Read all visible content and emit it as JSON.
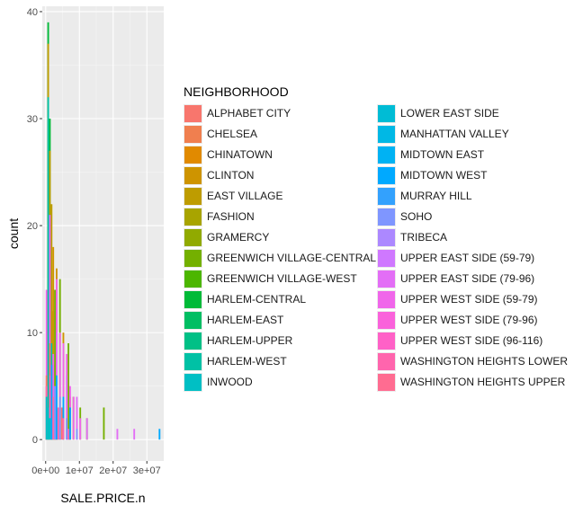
{
  "chart_data": {
    "type": "histogram",
    "xlabel": "SALE.PRICE.n",
    "ylabel": "count",
    "x_tick_labels": [
      "0e+00",
      "1e+07",
      "2e+07",
      "3e+07"
    ],
    "x_ticks": [
      0,
      10000000,
      20000000,
      30000000
    ],
    "xlim": [
      -1000000,
      35000000
    ],
    "y_ticks": [
      0,
      10,
      20,
      30,
      40
    ],
    "ylim": [
      -2,
      40.5
    ],
    "grid": true,
    "legend_title": "NEIGHBORHOOD",
    "legend_position": "right",
    "categories": [
      "ALPHABET CITY",
      "CHELSEA",
      "CHINATOWN",
      "CLINTON",
      "EAST VILLAGE",
      "FASHION",
      "GRAMERCY",
      "GREENWICH VILLAGE-CENTRAL",
      "GREENWICH VILLAGE-WEST",
      "HARLEM-CENTRAL",
      "HARLEM-EAST",
      "HARLEM-UPPER",
      "HARLEM-WEST",
      "INWOOD",
      "LOWER EAST SIDE",
      "MANHATTAN VALLEY",
      "MIDTOWN EAST",
      "MIDTOWN WEST",
      "MURRAY HILL",
      "SOHO",
      "TRIBECA",
      "UPPER EAST SIDE (59-79)",
      "UPPER EAST SIDE (79-96)",
      "UPPER WEST SIDE (59-79)",
      "UPPER WEST SIDE (79-96)",
      "UPPER WEST SIDE (96-116)",
      "WASHINGTON HEIGHTS LOWER",
      "WASHINGTON HEIGHTS UPPER"
    ],
    "colors": [
      "#F8766D",
      "#F07F4F",
      "#E18A00",
      "#CE9400",
      "#BE9C00",
      "#A8A400",
      "#91AA00",
      "#74B000",
      "#4CB600",
      "#00BA38",
      "#00BE63",
      "#00C086",
      "#00C1A5",
      "#00BFC4",
      "#00BCD5",
      "#00B8E5",
      "#00B2F3",
      "#00A9FF",
      "#33A1FD",
      "#7F96FF",
      "#AC88FF",
      "#CF78FF",
      "#E36EF6",
      "#F066EA",
      "#FA62DB",
      "#FF61C7",
      "#FF65AD",
      "#FF6C91"
    ],
    "series": [
      {
        "name": "HARLEM-CENTRAL",
        "bin_starts": [
          0,
          500000,
          1000000,
          1500000,
          2000000,
          2500000,
          3000000
        ],
        "counts": [
          5,
          39,
          30,
          12,
          6,
          3,
          1
        ]
      },
      {
        "name": "EAST VILLAGE",
        "bin_starts": [
          0,
          500000,
          1000000,
          1500000,
          2000000,
          2500000,
          3000000,
          3500000
        ],
        "counts": [
          3,
          37,
          27,
          22,
          12,
          7,
          5,
          2
        ]
      },
      {
        "name": "HARLEM-WEST",
        "bin_starts": [
          0,
          500000,
          1000000,
          1500000,
          2000000
        ],
        "counts": [
          4,
          32,
          21,
          9,
          3
        ]
      },
      {
        "name": "GREENWICH VILLAGE-CENTRAL",
        "bin_starts": [
          1000000,
          2500000,
          4000000,
          5000000,
          6500000,
          8000000,
          10000000,
          12000000,
          17000000
        ],
        "counts": [
          12,
          14,
          15,
          8,
          9,
          4,
          3,
          2,
          3
        ]
      },
      {
        "name": "CLINTON",
        "bin_starts": [
          2000000,
          3000000,
          5000000,
          7000000
        ],
        "counts": [
          18,
          16,
          10,
          4
        ]
      },
      {
        "name": "UPPER WEST SIDE (59-79)",
        "bin_starts": [
          0,
          1000000,
          2000000,
          3000000,
          4000000,
          5000000,
          6000000,
          7000000,
          8000000,
          9000000,
          10000000
        ],
        "counts": [
          14,
          21,
          8,
          15,
          10,
          9,
          8,
          5,
          4,
          3,
          2
        ]
      },
      {
        "name": "UPPER EAST SIDE (79-96)",
        "bin_starts": [
          1000000,
          3000000,
          6000000,
          9000000,
          12000000,
          21000000,
          26000000
        ],
        "counts": [
          9,
          10,
          6,
          4,
          2,
          1,
          1
        ]
      },
      {
        "name": "MIDTOWN WEST",
        "bin_starts": [
          1500000,
          3000000,
          5000000,
          7000000,
          33500000
        ],
        "counts": [
          7,
          6,
          4,
          3,
          1
        ]
      },
      {
        "name": "ALPHABET CITY",
        "bin_starts": [
          0,
          1000000,
          2500000,
          4500000
        ],
        "counts": [
          6,
          9,
          5,
          3
        ]
      },
      {
        "name": "WASHINGTON HEIGHTS LOWER",
        "bin_starts": [
          0,
          1000000,
          2000000,
          3500000,
          5000000,
          6500000
        ],
        "counts": [
          5,
          6,
          4,
          3,
          2,
          1
        ]
      },
      {
        "name": "SOHO",
        "bin_starts": [
          2500000,
          4000000,
          6000000,
          9000000
        ],
        "counts": [
          5,
          4,
          2,
          1
        ]
      },
      {
        "name": "INWOOD",
        "bin_starts": [
          0,
          500000,
          1000000
        ],
        "counts": [
          4,
          3,
          2
        ]
      }
    ]
  }
}
